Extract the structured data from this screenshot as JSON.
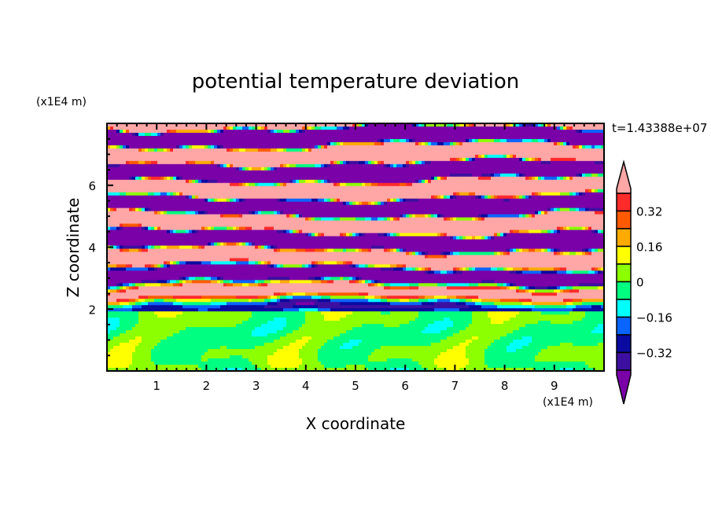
{
  "chart_data": {
    "type": "heatmap",
    "subtype": "filled-contour",
    "title": "potential temperature deviation",
    "xlabel": "X coordinate",
    "ylabel": "Z coordinate",
    "x_unit": "(x1E4 m)",
    "y_unit": "(x1E4 m)",
    "time_label": "t=1.43388e+07",
    "xlim": [
      0,
      10
    ],
    "ylim": [
      0,
      8
    ],
    "x_ticks": [
      "1",
      "2",
      "3",
      "4",
      "5",
      "6",
      "7",
      "8",
      "9"
    ],
    "x_tick_values": [
      1,
      2,
      3,
      4,
      5,
      6,
      7,
      8,
      9
    ],
    "y_ticks": [
      "2",
      "4",
      "6"
    ],
    "y_tick_values": [
      2,
      4,
      6
    ],
    "colorbar": {
      "levels": [
        -0.4,
        -0.32,
        -0.24,
        -0.16,
        -0.08,
        0,
        0.08,
        0.16,
        0.24,
        0.32,
        0.4
      ],
      "colors": [
        "#7a00a8",
        "#3c0fa0",
        "#0a0aa0",
        "#0a64ff",
        "#00ffff",
        "#00ff80",
        "#8cff00",
        "#ffff00",
        "#ffaa00",
        "#ff5a00",
        "#ff2a2a",
        "#ffa6a6"
      ],
      "tick_labels": [
        "0.32",
        "0.16",
        "0",
        "-0.16",
        "-0.32"
      ],
      "tick_values": [
        0.32,
        0.16,
        0,
        -0.16,
        -0.32
      ],
      "extend": "both"
    },
    "description_of_field": {
      "z_below_2": "values near 0 (between -0.08 and 0.08), mix of green and yellow-green",
      "z_2_to_4.5": "turbulent layered structure spanning the full color range",
      "z_above_4.5": "horizontal alternating bands saturated beyond +0.4 (pink) and below -0.4 (purple)"
    }
  }
}
